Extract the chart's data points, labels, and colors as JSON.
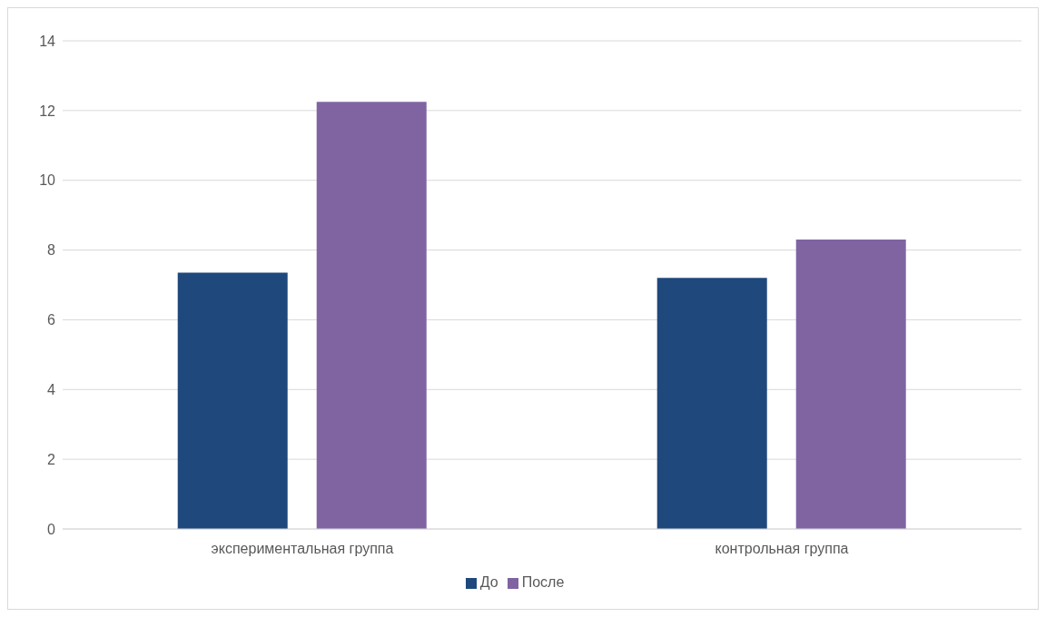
{
  "chart_data": {
    "type": "bar",
    "categories": [
      "экспериментальная группа",
      "контрольная группа"
    ],
    "series": [
      {
        "name": "До",
        "color": "#1f497d",
        "values": [
          7.35,
          7.2
        ]
      },
      {
        "name": "После",
        "color": "#8064a2",
        "values": [
          12.25,
          8.3
        ]
      }
    ],
    "ylim": [
      0,
      14
    ],
    "yticks": [
      0,
      2,
      4,
      6,
      8,
      10,
      12,
      14
    ],
    "grid": "y",
    "legend": "bottom"
  }
}
